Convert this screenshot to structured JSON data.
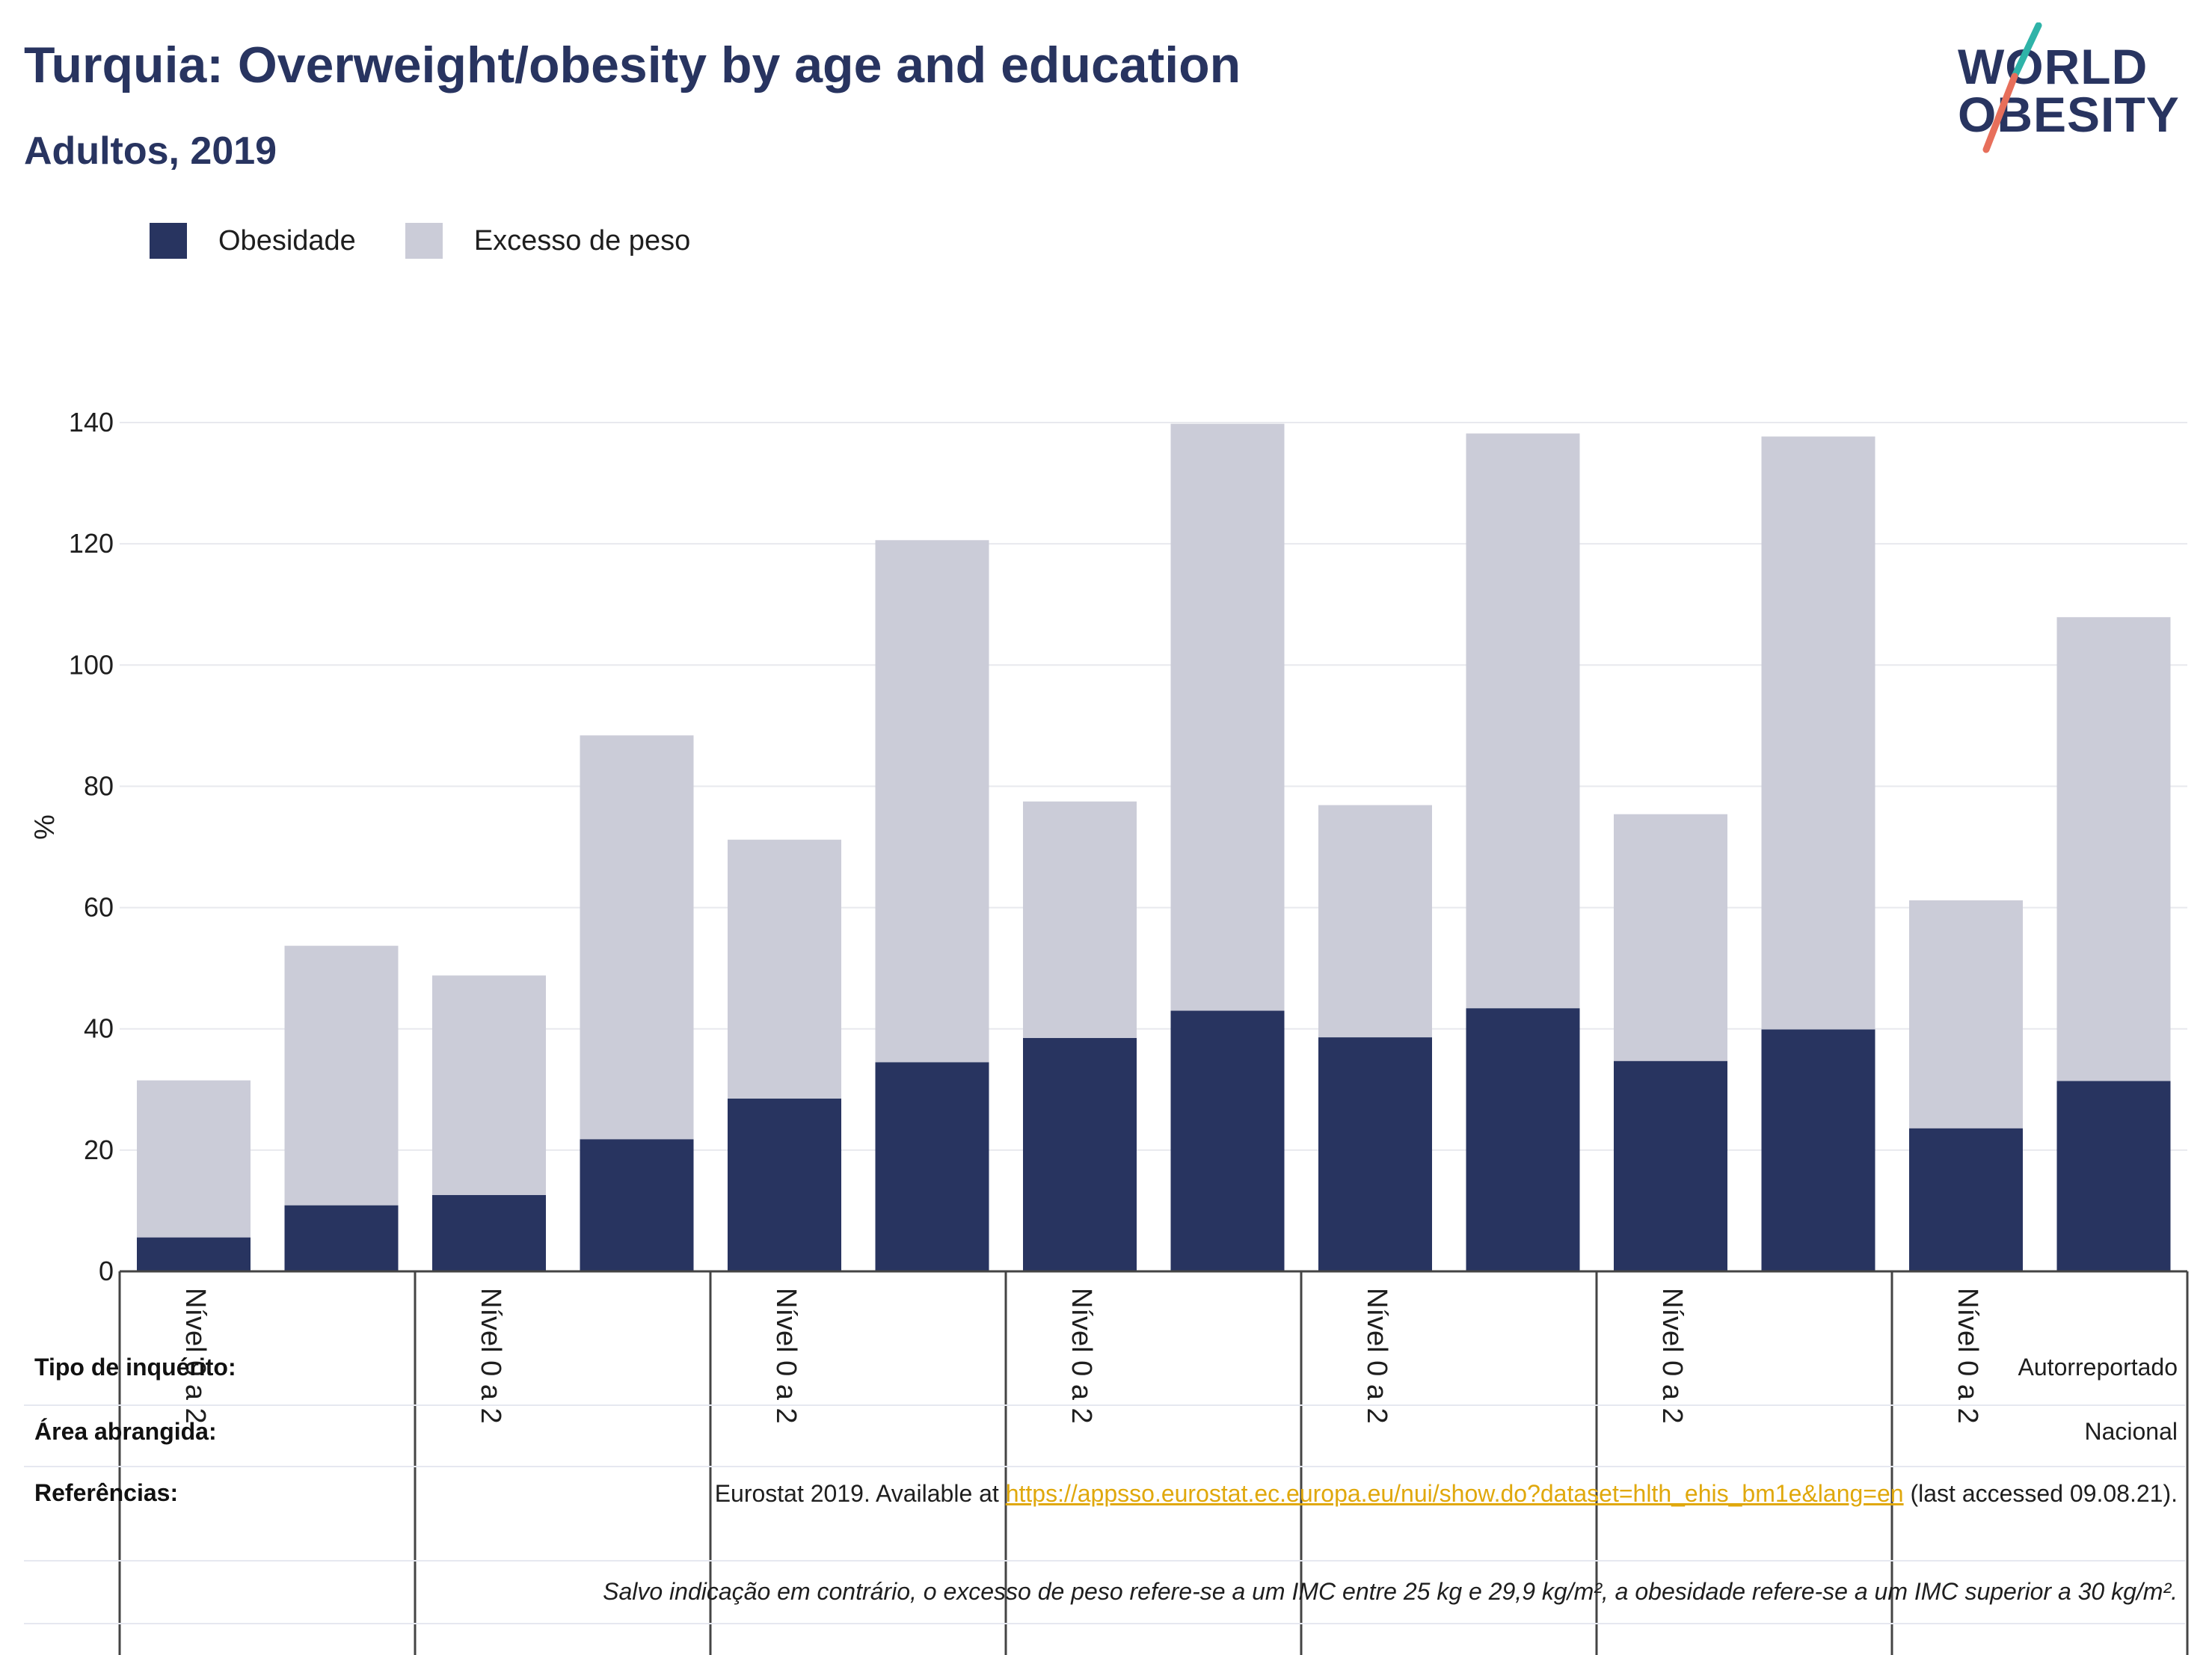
{
  "header": {
    "title": "Turquia: Overweight/obesity by age and education",
    "subtitle": "Adultos, 2019"
  },
  "logo": {
    "line1": "WORLD",
    "line2": "OBESITY"
  },
  "legend": [
    {
      "label": "Obesidade",
      "color": "#283460"
    },
    {
      "label": "Excesso de peso",
      "color": "#cbccd8"
    }
  ],
  "chart_data": {
    "type": "bar",
    "stacked": true,
    "ylabel": "%",
    "ylim": [
      0,
      140
    ],
    "yticks": [
      0,
      20,
      40,
      60,
      80,
      100,
      120,
      140
    ],
    "grid": true,
    "legend_position": "top-left",
    "group_labels": [
      "Nível 0 a 2",
      "Nível 0 a 2",
      "Nível 0 a 2",
      "Nível 0 a 2",
      "Nível 0 a 2",
      "Nível 0 a 2",
      "Nível 0 a 2"
    ],
    "series": [
      {
        "name": "Obesidade",
        "color": "#283460",
        "values": [
          5.6,
          10.9,
          12.6,
          21.8,
          28.5,
          34.5,
          38.5,
          43.0,
          38.6,
          43.4,
          34.7,
          39.9,
          23.6,
          31.4
        ]
      },
      {
        "name": "Excesso de peso",
        "color": "#cbccd8",
        "values": [
          25.9,
          42.8,
          36.2,
          66.6,
          42.7,
          86.1,
          39.0,
          96.8,
          38.3,
          94.8,
          40.7,
          97.8,
          37.6,
          76.5
        ]
      }
    ]
  },
  "meta": {
    "survey_label": "Tipo de inquérito:",
    "survey_value": "Autorreportado",
    "area_label": "Área abrangida:",
    "area_value": "Nacional",
    "refs_label": "Referências:",
    "refs_prefix": "Eurostat 2019. Available at",
    "refs_link": "https://appsso.eurostat.ec.europa.eu/nui/show.do?dataset=hlth_ehis_bm1e&lang=en",
    "refs_suffix": "(last accessed 09.08.21).",
    "note": "Salvo indicação em contrário, o excesso de peso refere-se a um IMC entre 25 kg e 29,9 kg/m², a obesidade refere-se a um IMC superior a 30 kg/m²."
  }
}
